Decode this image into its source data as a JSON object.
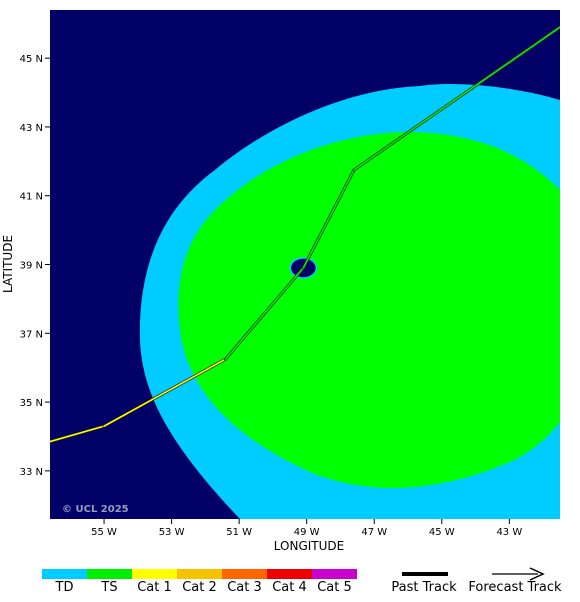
{
  "map": {
    "copyright": "© UCL 2025",
    "background_color": "#000066",
    "axes": {
      "xlabel": "LONGITUDE",
      "ylabel": "LATITUDE",
      "lon_range": [
        -56.6,
        -41.5
      ],
      "lat_range": [
        31.6,
        46.4
      ],
      "x_ticks": [
        {
          "value": -55,
          "label": "55 W"
        },
        {
          "value": -53,
          "label": "53 W"
        },
        {
          "value": -51,
          "label": "51 W"
        },
        {
          "value": -49,
          "label": "49 W"
        },
        {
          "value": -47,
          "label": "47 W"
        },
        {
          "value": -45,
          "label": "45 W"
        },
        {
          "value": -43,
          "label": "43 W"
        }
      ],
      "y_ticks": [
        {
          "value": 45,
          "label": "45 N"
        },
        {
          "value": 43,
          "label": "43 N"
        },
        {
          "value": 41,
          "label": "41 N"
        },
        {
          "value": 39,
          "label": "39 N"
        },
        {
          "value": 37,
          "label": "37 N"
        },
        {
          "value": 35,
          "label": "35 N"
        },
        {
          "value": 33,
          "label": "33 N"
        }
      ]
    },
    "wind_field": {
      "td_color": "#00ccff",
      "ts_color": "#00ff00",
      "eye_color": "#000066",
      "eye_center": {
        "lon": -49.1,
        "lat": 38.9
      }
    },
    "track": [
      {
        "lon": -56.6,
        "lat": 33.85,
        "category": "Cat 1"
      },
      {
        "lon": -55.0,
        "lat": 34.3,
        "category": "Cat 1"
      },
      {
        "lon": -51.4,
        "lat": 36.25,
        "category": "TS"
      },
      {
        "lon": -49.1,
        "lat": 38.9,
        "category": "TS"
      },
      {
        "lon": -47.6,
        "lat": 41.75,
        "category": "TS"
      },
      {
        "lon": -41.5,
        "lat": 45.9,
        "category": "TS"
      }
    ]
  },
  "legend": {
    "categories": [
      {
        "label": "TD",
        "color": "#00ccff"
      },
      {
        "label": "TS",
        "color": "#00ee00"
      },
      {
        "label": "Cat 1",
        "color": "#ffff00"
      },
      {
        "label": "Cat 2",
        "color": "#f5c400"
      },
      {
        "label": "Cat 3",
        "color": "#ff6600"
      },
      {
        "label": "Cat 4",
        "color": "#ee0000"
      },
      {
        "label": "Cat 5",
        "color": "#cc00cc"
      }
    ],
    "past_track_label": "Past Track",
    "forecast_track_label": "Forecast Track"
  }
}
